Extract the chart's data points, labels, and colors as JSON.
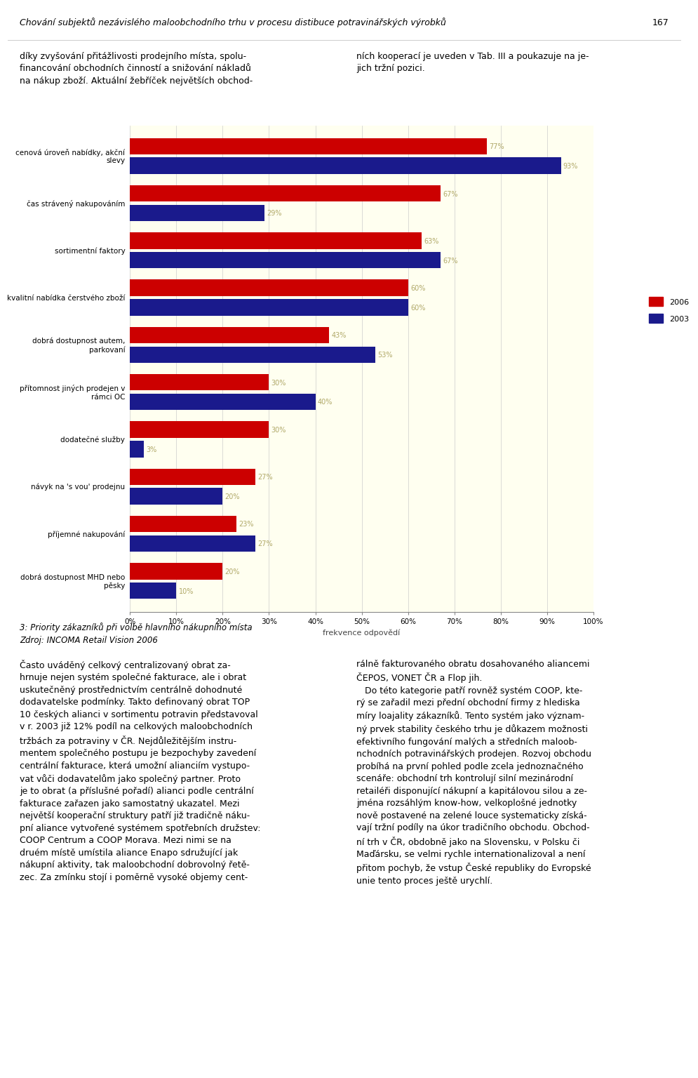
{
  "categories": [
    "cenová úroveň nabídky, akční\nslevy",
    "čas strávený nakupováním",
    "sortimentní faktory",
    "kvalitní nabídka čerstvého zboží",
    "dobrá dostupnost autem,\nparkovaní",
    "přítomnost jiných prodejen v\nrámci OC",
    "dodatečné služby",
    "návyk na 's vou' prodejnu",
    "příjemné nakupování",
    "dobrá dostupnost MHD nebo\npěsky"
  ],
  "values_2006": [
    77,
    67,
    63,
    60,
    43,
    30,
    30,
    27,
    23,
    20
  ],
  "values_2003": [
    93,
    29,
    67,
    60,
    53,
    40,
    3,
    20,
    27,
    10
  ],
  "color_2006": "#cc0000",
  "color_2003": "#1a1a8c",
  "background_color": "#fffff0",
  "xlabel": "frekvence odpovědí",
  "legend_2006": "2006",
  "legend_2003": "2003",
  "xlim": [
    0,
    100
  ],
  "xtick_values": [
    0,
    10,
    20,
    30,
    40,
    50,
    60,
    70,
    80,
    90,
    100
  ],
  "xtick_labels": [
    "0%",
    "10%",
    "20%",
    "30%",
    "40%",
    "50%",
    "60%",
    "70%",
    "80%",
    "90%",
    "100%"
  ],
  "bar_label_color": "#b0a868",
  "bar_label_fontsize": 7.0,
  "ylabel_fontsize": 7.5,
  "xlabel_fontsize": 8,
  "legend_fontsize": 8,
  "header_title": "Chování subjektů nezávislého maloobchodního trhu v procesu distibuce potravinářských výrobků",
  "header_page": "167",
  "col1_top": "díky zvyšování přitážlivosti prodejního místa, spolu-\nfinancování obchodních činností a snižování nákladů\nna nákup zboží. Aktuální žebříček největších obchod-",
  "col2_top": "ních kooperací je uveden v Tab. III a poukazuje na je-\njich tržní pozici.",
  "caption_italic": "3: Priority zákazníků při volbě hlavního nákupního místa",
  "caption_source": "Zdroj: INCOMA Retail Vision 2006",
  "bottom_col1": "Často uváděný celkový centralizovaný obrat za-\nhrnuje nejen systém společné fakturace, ale i obrat\nuskutečněný prostřednictvím centrálně dohodnuté\ndodavatelske podmínky. Takto definovaný obrat TOP\n10 českých alianci v sortimentu potravin představoval\nv r. 2003 již 12% podíl na celkových maloobchodních\ntržbách za potraviny v ČR. Nejdůležitějším instru-\nmentem společného postupu je bezpochyby zavedení\ncentrální fakturace, která umožní alianciím vystupo-\nvat vůči dodavatelům jako společný partner. Proto\nje to obrat (a příslušné pořadí) alianci podle centrální\nfakturace zařazen jako samostatný ukazatel. Mezi\nnejvětší kooperační struktury patří již tradičně náku-\npní aliance vytvořené systémem spotřebních družstev:\nCOOP Centrum a COOP Morava. Mezi nimi se na\ndruém místě umístila aliance Enapo sdružující jak\nnákupní aktivity, tak maloobchodní dobrovolný řetě-\nzec. Za zmínku stojí i poměrně vysoké objemy cent-",
  "bottom_col2": "rálně fakturovaného obratu dosahovaného aliancemi\nČEPOS, VONET ČR a Flop jih.\n   Do této kategorie patří rovněž systém COOP, kte-\nrý se zařadil mezi přední obchodní firmy z hlediska\nmíry loajality zákazníků. Tento systém jako význam-\nný prvek stability českého trhu je důkazem možnosti\nefektivního fungování malých a středních maloob-\nnchodních potravinářských prodejen. Rozvoj obchodu\nprobíhá na první pohled podle zcela jednoznačného\nscenáře: obchodní trh kontrolují silní mezinárodní\nretailéři disponující nákupní a kapitálovou silou a ze-\njména rozsáhlým know-how, velkoplošné jednotky\nnově postavené na zelené louce systematicky získá-\nvají tržní podíly na úkor tradičního obchodu. Obchod-\nní trh v ČR, obdobně jako na Slovensku, v Polsku či\nMaďársku, se velmi rychle internationalizoval a není\npřitom pochyb, že vstup České republiky do Evropské\nunie tento proces ještě urychlí."
}
